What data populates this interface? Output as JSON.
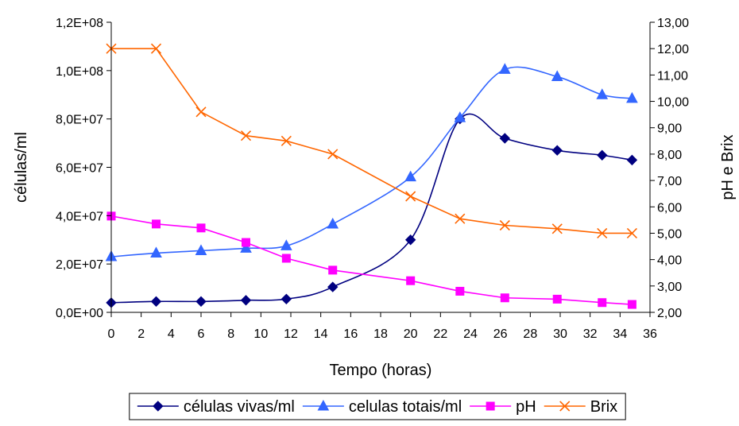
{
  "chart_data": {
    "type": "line",
    "title": "",
    "xlabel": "Tempo (horas)",
    "ylabel": "células/ml",
    "y2label": "pH e Brix",
    "xlim": [
      0,
      36
    ],
    "ylim": [
      0,
      120000000
    ],
    "y2lim": [
      2,
      13
    ],
    "x_ticks": [
      0,
      2,
      4,
      6,
      8,
      10,
      12,
      14,
      16,
      18,
      20,
      22,
      24,
      26,
      28,
      30,
      32,
      34,
      36
    ],
    "x_tick_labels": [
      "0",
      "2",
      "4",
      "6",
      "8",
      "10",
      "12",
      "14",
      "16",
      "18",
      "20",
      "22",
      "24",
      "26",
      "28",
      "30",
      "32",
      "34",
      "36"
    ],
    "y_ticks": [
      0,
      20000000,
      40000000,
      60000000,
      80000000,
      100000000,
      120000000
    ],
    "y_tick_labels": [
      "0,0E+00",
      "2,0E+07",
      "4,0E+07",
      "6,0E+07",
      "8,0E+07",
      "1,0E+08",
      "1,2E+08"
    ],
    "y2_ticks": [
      2,
      3,
      4,
      5,
      6,
      7,
      8,
      9,
      10,
      11,
      12,
      13
    ],
    "y2_tick_labels": [
      "2,00",
      "3,00",
      "4,00",
      "5,00",
      "6,00",
      "7,00",
      "8,00",
      "9,00",
      "10,00",
      "11,00",
      "12,00",
      "13,00"
    ],
    "grid": false,
    "legend_position": "bottom",
    "series": [
      {
        "name": "células vivas/ml",
        "axis": "left",
        "color": "#000080",
        "marker": "diamond",
        "x": [
          0,
          3,
          6,
          9,
          11.7,
          14.8,
          20,
          23.3,
          26.3,
          29.8,
          32.8,
          34.8
        ],
        "y": [
          4000000,
          4500000,
          4500000,
          5000000,
          5500000,
          10500000,
          30000000,
          80000000,
          72000000,
          67000000,
          65000000,
          63000000
        ]
      },
      {
        "name": "celulas totais/ml",
        "axis": "left",
        "color": "#3366FF",
        "marker": "triangle",
        "x": [
          0,
          3,
          6,
          9,
          11.7,
          14.8,
          20,
          23.3,
          26.3,
          29.8,
          32.8,
          34.8
        ],
        "y": [
          23000000,
          24500000,
          25500000,
          26500000,
          27500000,
          36500000,
          56000000,
          80500000,
          100500000,
          97500000,
          90000000,
          88500000
        ]
      },
      {
        "name": "pH",
        "axis": "right",
        "color": "#FF00FF",
        "marker": "square",
        "x": [
          0,
          3,
          6,
          9,
          11.7,
          14.8,
          20,
          23.3,
          26.3,
          29.8,
          32.8,
          34.8
        ],
        "y": [
          5.65,
          5.35,
          5.2,
          4.65,
          4.05,
          3.6,
          3.2,
          2.8,
          2.55,
          2.5,
          2.37,
          2.3
        ]
      },
      {
        "name": "Brix",
        "axis": "right",
        "color": "#FF6600",
        "marker": "x",
        "x": [
          0,
          3,
          6,
          9,
          11.7,
          14.8,
          20,
          23.3,
          26.3,
          29.8,
          32.8,
          34.8
        ],
        "y": [
          12.0,
          12.0,
          9.6,
          8.7,
          8.5,
          8.0,
          6.4,
          5.55,
          5.3,
          5.17,
          5.0,
          5.0
        ]
      }
    ]
  }
}
